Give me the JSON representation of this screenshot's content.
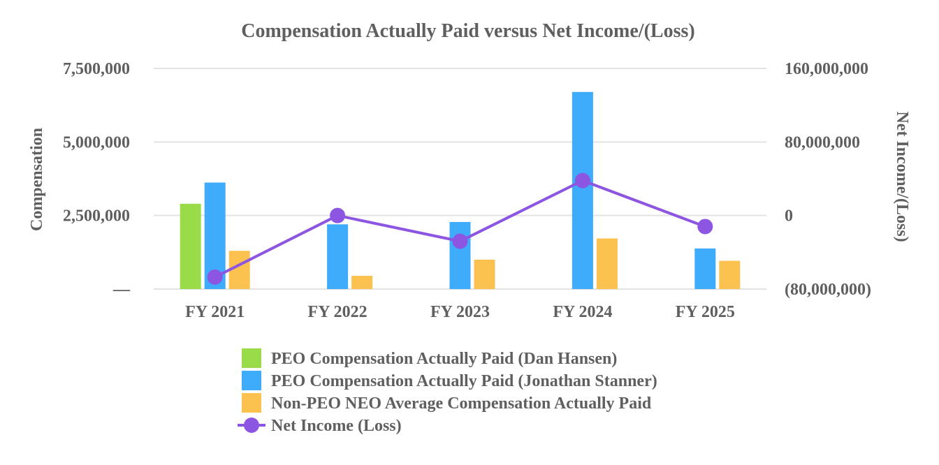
{
  "chart_data": {
    "type": "bar",
    "title": "Compensation Actually Paid versus Net Income/(Loss)",
    "categories": [
      "FY 2021",
      "FY 2022",
      "FY 2023",
      "FY 2024",
      "FY 2025"
    ],
    "y_left": {
      "label": "Compensation",
      "ylim": [
        0,
        7500000
      ],
      "ticks": [
        0,
        2500000,
        5000000,
        7500000
      ],
      "tick_labels": [
        "—",
        "2,500,000",
        "5,000,000",
        "7,500,000"
      ]
    },
    "y_right": {
      "label": "Net Income/(Loss)",
      "ylim": [
        -80000000,
        160000000
      ],
      "ticks": [
        -80000000,
        0,
        80000000,
        160000000
      ],
      "tick_labels": [
        "(80,000,000)",
        "0",
        "80,000,000",
        "160,000,000"
      ]
    },
    "series": [
      {
        "name": "PEO Compensation Actually Paid (Dan Hansen)",
        "kind": "bar",
        "axis": "left",
        "color": "#99db48",
        "values": [
          2900000,
          null,
          null,
          null,
          null
        ]
      },
      {
        "name": "PEO Compensation Actually Paid (Jonathan Stanner)",
        "kind": "bar",
        "axis": "left",
        "color": "#3eabfb",
        "values": [
          3620000,
          2200000,
          2280000,
          6700000,
          1380000
        ]
      },
      {
        "name": "Non-PEO NEO Average Compensation Actually Paid",
        "kind": "bar",
        "axis": "left",
        "color": "#fbc24f",
        "values": [
          1300000,
          450000,
          1000000,
          1720000,
          960000
        ]
      },
      {
        "name": "Net Income (Loss)",
        "kind": "line",
        "axis": "right",
        "color": "#8d56e2",
        "values": [
          -67000000,
          0,
          -28000000,
          38000000,
          -12000000
        ]
      }
    ],
    "grid": true,
    "legend_position": "bottom"
  }
}
